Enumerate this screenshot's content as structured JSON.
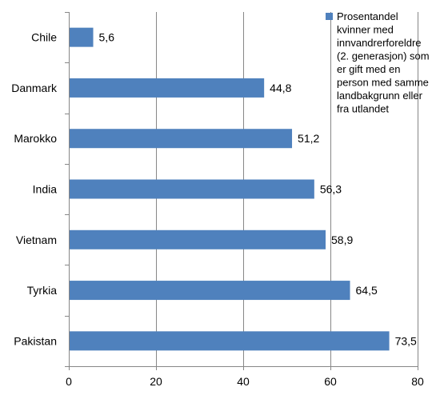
{
  "chart_data": {
    "type": "bar",
    "orientation": "horizontal",
    "categories": [
      "Chile",
      "Danmark",
      "Marokko",
      "India",
      "Vietnam",
      "Tyrkia",
      "Pakistan"
    ],
    "series": [
      {
        "name": "Prosentandel kvinner med innvandrerforeldre (2. generasjon) som er gift med en person med samme landbakgrunn eller fra utlandet",
        "values": [
          5.6,
          44.8,
          51.2,
          56.3,
          58.9,
          64.5,
          73.5
        ],
        "data_labels": [
          "5,6",
          "44,8",
          "51,2",
          "56,3",
          "58,9",
          "64,5",
          "73,5"
        ],
        "color": "#4f81bd"
      }
    ],
    "xlim": [
      0,
      80
    ],
    "x_ticks": [
      0,
      20,
      40,
      60,
      80
    ],
    "grid": "vertical",
    "legend_position": "top-right",
    "legend_lines": [
      "Prosentandel",
      "kvinner med",
      "innvandrerforeldre",
      "(2. generasjon) som",
      "er gift med en",
      "person med samme",
      "landbakgrunn eller",
      "fra utlandet"
    ]
  },
  "colors": {
    "bar": "#4f81bd",
    "grid": "#878787",
    "axis": "#878787"
  }
}
